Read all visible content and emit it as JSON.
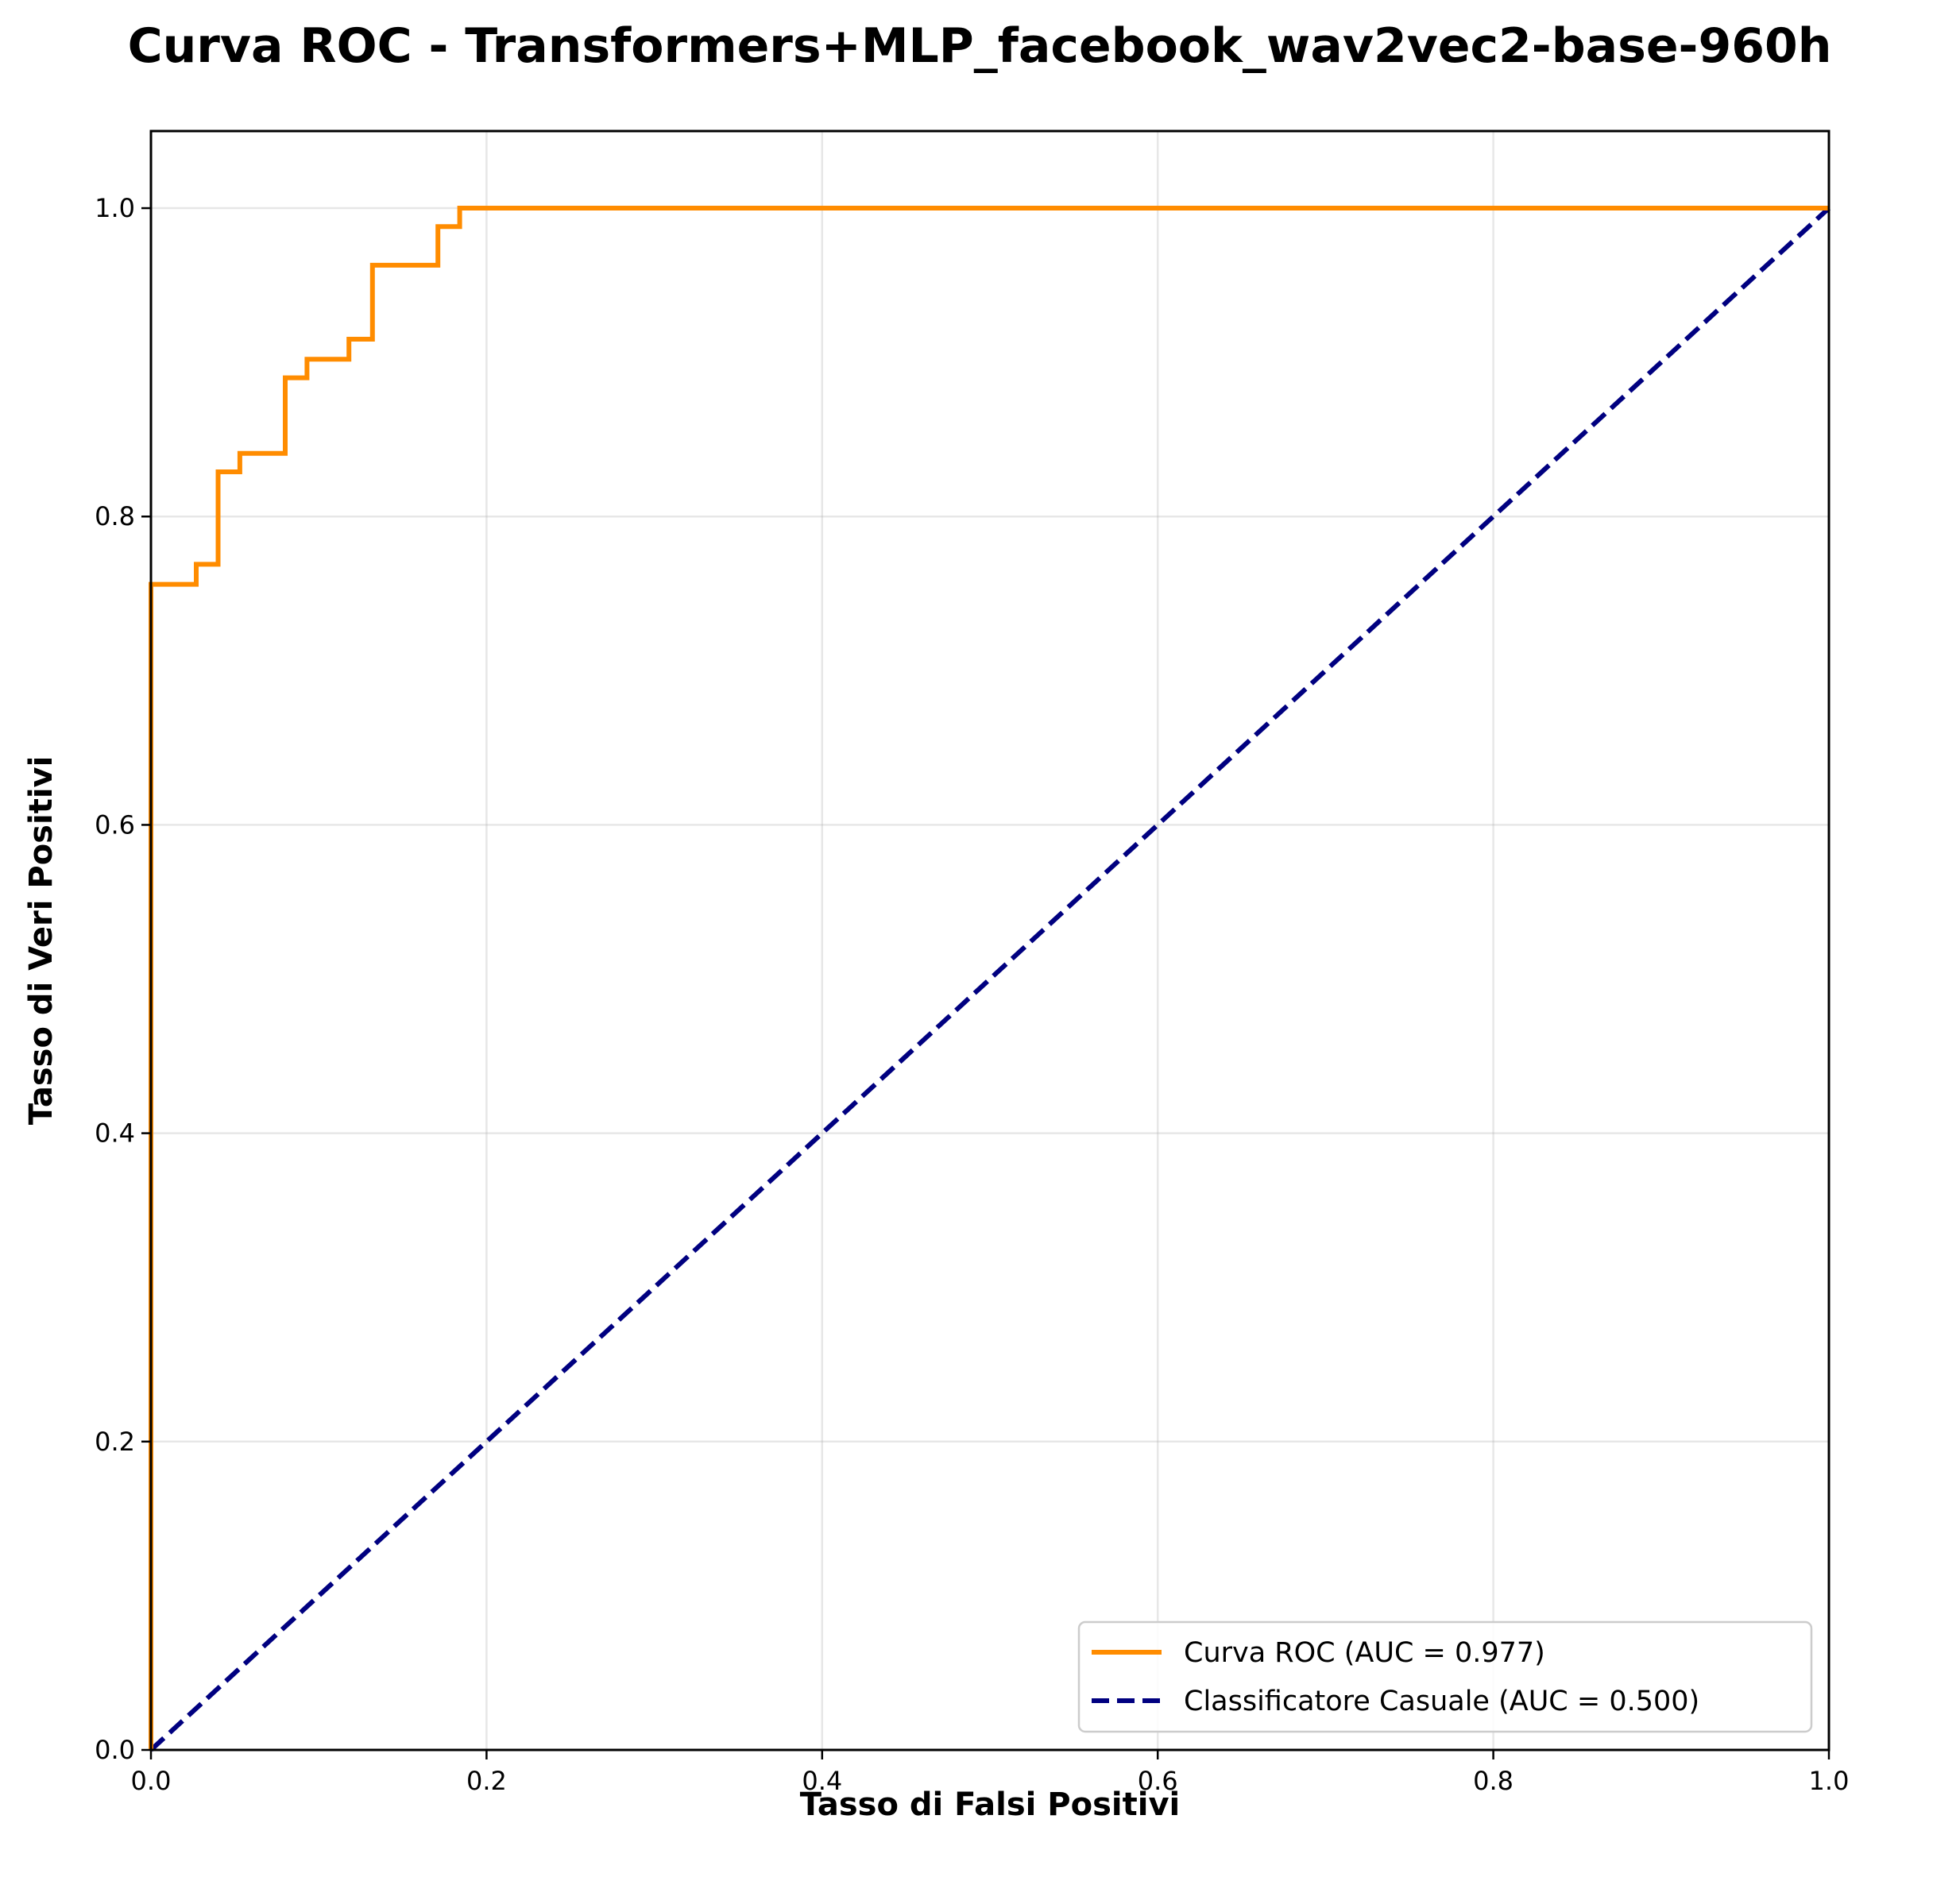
{
  "chart_data": {
    "type": "line",
    "title": "Curva ROC - Transformers+MLP_facebook_wav2vec2-base-960h",
    "xlabel": "Tasso di Falsi Positivi",
    "ylabel": "Tasso di Veri Positivi",
    "xlim": [
      0.0,
      1.0
    ],
    "ylim": [
      0.0,
      1.05
    ],
    "xticks": [
      "0.0",
      "0.2",
      "0.4",
      "0.6",
      "0.8",
      "1.0"
    ],
    "yticks": [
      "0.0",
      "0.2",
      "0.4",
      "0.6",
      "0.8",
      "1.0"
    ],
    "grid": true,
    "legend_position": "lower-right",
    "series": [
      {
        "name": "Curva ROC (AUC = 0.977)",
        "color": "#ff8c00",
        "style": "solid",
        "x": [
          0.0,
          0.0,
          0.027,
          0.027,
          0.04,
          0.04,
          0.053,
          0.053,
          0.08,
          0.08,
          0.093,
          0.093,
          0.118,
          0.118,
          0.132,
          0.132,
          0.171,
          0.171,
          0.184,
          0.184,
          1.0
        ],
        "y": [
          0.0,
          0.756,
          0.756,
          0.769,
          0.769,
          0.829,
          0.829,
          0.841,
          0.841,
          0.89,
          0.89,
          0.902,
          0.902,
          0.915,
          0.915,
          0.963,
          0.963,
          0.988,
          0.988,
          1.0,
          1.0
        ]
      },
      {
        "name": "Classificatore Casuale (AUC = 0.500)",
        "color": "#000080",
        "style": "dashed",
        "x": [
          0.0,
          1.0
        ],
        "y": [
          0.0,
          1.0
        ]
      }
    ]
  }
}
